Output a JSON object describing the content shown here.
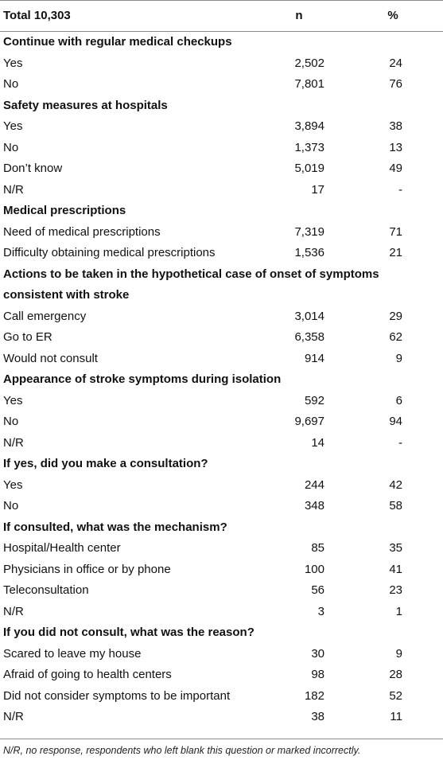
{
  "header": {
    "label": "Total 10,303",
    "n": "n",
    "pct": "%"
  },
  "sections": [
    {
      "title": "Continue with regular medical checkups",
      "rows": [
        {
          "label": "Yes",
          "n": "2,502",
          "pct": "24"
        },
        {
          "label": "No",
          "n": "7,801",
          "pct": "76"
        }
      ]
    },
    {
      "title": "Safety measures at hospitals",
      "rows": [
        {
          "label": "Yes",
          "n": "3,894",
          "pct": "38"
        },
        {
          "label": "No",
          "n": "1,373",
          "pct": "13"
        },
        {
          "label": "Don’t know",
          "n": "5,019",
          "pct": "49"
        },
        {
          "label": "N/R",
          "n": "17",
          "pct": "-"
        }
      ]
    },
    {
      "title": "Medical prescriptions",
      "rows": [
        {
          "label": "Need of medical prescriptions",
          "n": "7,319",
          "pct": "71"
        },
        {
          "label": "Difficulty obtaining medical prescriptions",
          "n": "1,536",
          "pct": "21"
        }
      ]
    },
    {
      "title": "Actions to be taken in the hypothetical case of onset of symptoms consistent with stroke",
      "rows": [
        {
          "label": "Call emergency",
          "n": "3,014",
          "pct": "29"
        },
        {
          "label": "Go to ER",
          "n": "6,358",
          "pct": "62"
        },
        {
          "label": "Would not consult",
          "n": "914",
          "pct": "9"
        }
      ]
    },
    {
      "title": "Appearance of stroke symptoms during isolation",
      "rows": [
        {
          "label": "Yes",
          "n": "592",
          "pct": "6"
        },
        {
          "label": "No",
          "n": "9,697",
          "pct": "94"
        },
        {
          "label": "N/R",
          "n": "14",
          "pct": "-"
        }
      ]
    },
    {
      "title": "If yes, did you make a consultation?",
      "rows": [
        {
          "label": "Yes",
          "n": "244",
          "pct": "42"
        },
        {
          "label": "No",
          "n": "348",
          "pct": "58"
        }
      ]
    },
    {
      "title": "If consulted, what was the mechanism?",
      "rows": [
        {
          "label": "Hospital/Health center",
          "n": "85",
          "pct": "35"
        },
        {
          "label": "Physicians in office or by phone",
          "n": "100",
          "pct": "41"
        },
        {
          "label": "Teleconsultation",
          "n": "56",
          "pct": "23"
        },
        {
          "label": "N/R",
          "n": "3",
          "pct": "1"
        }
      ]
    },
    {
      "title": "If you did not consult, what was the reason?",
      "rows": [
        {
          "label": "Scared to leave my house",
          "n": "30",
          "pct": "9"
        },
        {
          "label": "Afraid of going to health centers",
          "n": "98",
          "pct": "28"
        },
        {
          "label": "Did not consider symptoms to be important",
          "n": "182",
          "pct": "52"
        },
        {
          "label": "N/R",
          "n": "38",
          "pct": "11"
        }
      ]
    }
  ],
  "footnote": "N/R, no response, respondents who left blank this question or marked incorrectly."
}
